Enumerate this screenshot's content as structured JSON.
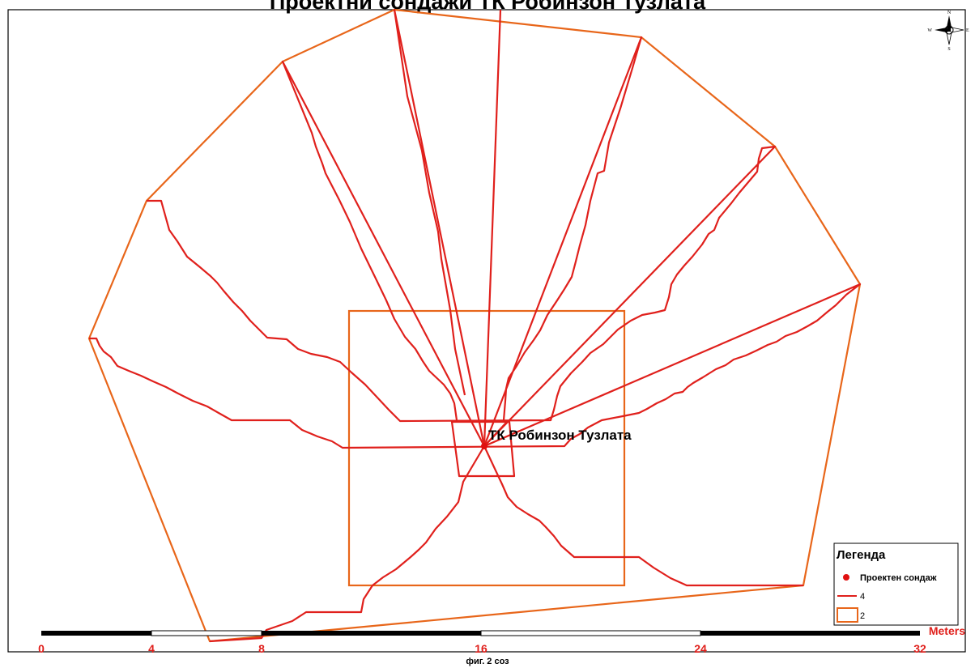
{
  "map": {
    "title": "Проектни сондажи ТК Робинзон Тузлата",
    "site_label": "ТК Робинзон Тузлата",
    "caption": "фиг. 2 соз",
    "colors": {
      "drill_line": "#e0201c",
      "boundary": "#e8661a",
      "point": "#e01010",
      "scale_text": "#e0201c"
    }
  },
  "legend": {
    "title": "Легенда",
    "items": [
      {
        "label": "Проектен сондаж",
        "symbol": "red-dot-icon"
      },
      {
        "label": "4",
        "symbol": "red-line-icon"
      },
      {
        "label": "2",
        "symbol": "orange-box-icon"
      }
    ]
  },
  "scale_bar": {
    "ticks": [
      "0",
      "4",
      "8",
      "16",
      "24",
      "32"
    ],
    "unit": "Meters"
  },
  "compass": {
    "icon": "north-arrow-icon",
    "letters": {
      "n": "N",
      "s": "S",
      "e": "E",
      "w": "W"
    }
  }
}
